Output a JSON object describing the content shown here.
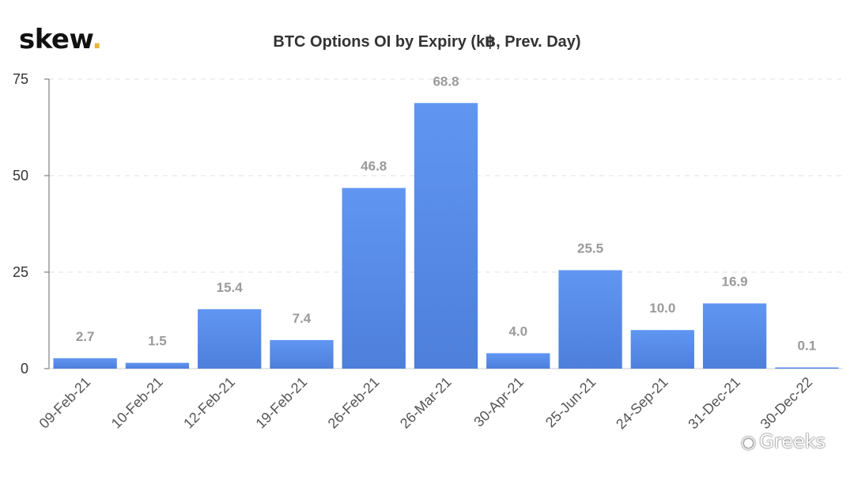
{
  "brand": {
    "logo_text": "skew",
    "logo_dot": "."
  },
  "watermark": {
    "text": "Greeks",
    "icon": "wechat-icon"
  },
  "colors": {
    "bar_top": "#6096f2",
    "bar_bottom": "#4d7fdb",
    "label": "#9a9a9a",
    "grid": "#e0e0e0",
    "axis": "#666666"
  },
  "chart_data": {
    "type": "bar",
    "title": "BTC Options OI by Expiry (k฿, Prev. Day)",
    "xlabel": "",
    "ylabel": "",
    "categories": [
      "09-Feb-21",
      "10-Feb-21",
      "12-Feb-21",
      "19-Feb-21",
      "26-Feb-21",
      "26-Mar-21",
      "30-Apr-21",
      "25-Jun-21",
      "24-Sep-21",
      "31-Dec-21",
      "30-Dec-22"
    ],
    "values": [
      2.7,
      1.5,
      15.4,
      7.4,
      46.8,
      68.8,
      4.0,
      25.5,
      10.0,
      16.9,
      0.1
    ],
    "value_labels": [
      "2.7",
      "1.5",
      "15.4",
      "7.4",
      "46.8",
      "68.8",
      "4.0",
      "25.5",
      "10.0",
      "16.9",
      "0.1"
    ],
    "ylim": [
      0,
      75
    ],
    "yticks": [
      0,
      25,
      50,
      75
    ],
    "grid": true,
    "legend": "none"
  }
}
